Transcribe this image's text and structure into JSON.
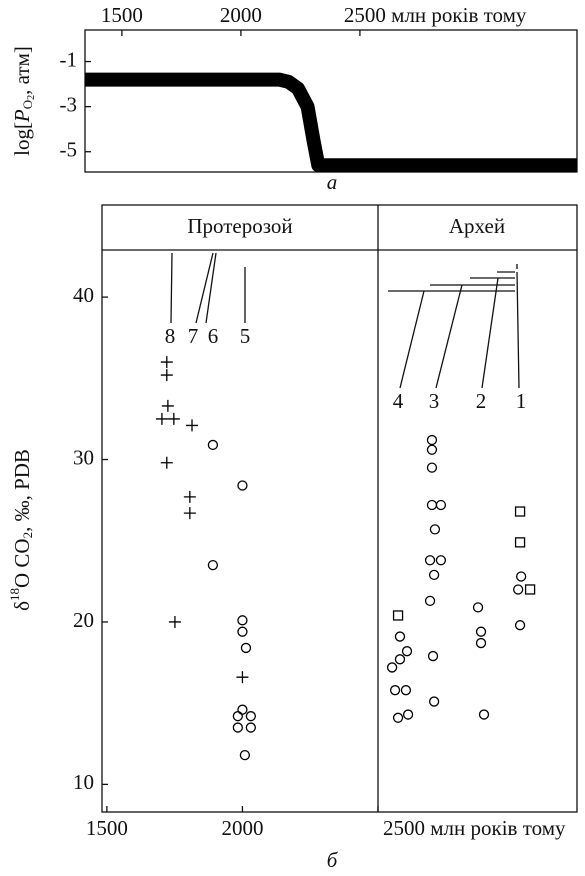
{
  "chart_data": [
    {
      "type": "line",
      "ylabel_parts": [
        "log[",
        "P",
        "O",
        "2",
        ", атм]"
      ],
      "caption": "а",
      "xlim": [
        1345,
        3412
      ],
      "ylim": [
        -5.9,
        0.4
      ],
      "xticks": [
        1500,
        2000,
        {
          "value": 2500,
          "label": "2500 млн років тому"
        }
      ],
      "yticks": [
        -1,
        -3,
        -5
      ],
      "color": "#000000",
      "x": [
        1345,
        2160,
        2200,
        2240,
        2280,
        2305,
        2325,
        3412
      ],
      "values": [
        -1.8,
        -1.8,
        -1.9,
        -2.2,
        -3.0,
        -4.5,
        -5.6,
        -5.6
      ]
    },
    {
      "type": "scatter",
      "ylabel_parts": [
        "δ",
        "18",
        "O CO",
        "2",
        ", ‰, PDB"
      ],
      "caption": "б",
      "periods": [
        "Протерозой",
        "Архей"
      ],
      "period_boundary": 2500,
      "annotations": [
        "8",
        "7",
        "6",
        "5",
        "4",
        "3",
        "2",
        "1"
      ],
      "xlim": [
        1482,
        3234
      ],
      "ylim": [
        8.3,
        42.9
      ],
      "xticks": [
        1500,
        2000,
        {
          "value": 2500,
          "label": "2500 млн років тому"
        }
      ],
      "yticks": [
        10,
        20,
        30,
        40
      ],
      "color": "#000000",
      "series": [
        {
          "marker": "plus",
          "x": [
            1721,
            1721,
            1725,
            1703,
            1747,
            1814,
            1721,
            1806,
            1806,
            1751,
            2000
          ],
          "values": [
            36.0,
            35.2,
            33.3,
            32.5,
            32.5,
            32.1,
            29.8,
            27.7,
            26.7,
            20.0,
            16.6
          ]
        },
        {
          "marker": "circle",
          "x": [
            1891,
            1891,
            2000,
            2000,
            2000,
            2013,
            2000,
            1983,
            2031,
            1983,
            2031,
            2009,
            2699,
            2699,
            2699,
            2699,
            2732,
            2710,
            2692,
            2732,
            2707,
            2692,
            2703,
            2707,
            2581,
            2607,
            2581,
            2552,
            2563,
            2603,
            2574,
            2611,
            2869,
            2880,
            2880,
            2891,
            3028,
            3017,
            3024
          ],
          "values": [
            30.9,
            23.5,
            28.4,
            20.1,
            19.4,
            18.4,
            14.6,
            14.2,
            14.2,
            13.5,
            13.5,
            11.8,
            31.2,
            30.6,
            29.5,
            27.2,
            27.2,
            25.7,
            23.8,
            23.8,
            22.9,
            21.3,
            17.9,
            15.1,
            19.1,
            18.2,
            17.7,
            17.2,
            15.8,
            15.8,
            14.1,
            14.3,
            20.9,
            19.4,
            18.7,
            14.3,
            22.8,
            22.0,
            19.8
          ]
        },
        {
          "marker": "square",
          "x": [
            2574,
            3024,
            3024,
            3061
          ],
          "values": [
            20.4,
            26.8,
            24.9,
            22.0
          ]
        }
      ]
    }
  ]
}
